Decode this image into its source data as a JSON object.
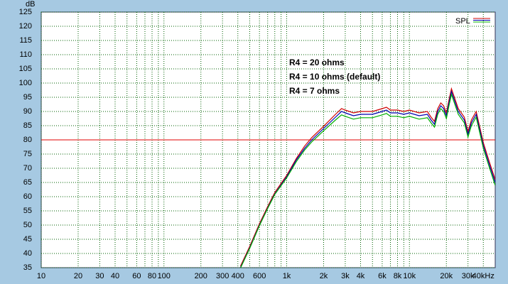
{
  "chart_data": {
    "type": "line",
    "y_label": "dB",
    "legend_label": "SPL",
    "legend_position": "top-right",
    "log_x": true,
    "grid": true,
    "xlim": [
      10,
      50000
    ],
    "ylim": [
      35,
      125
    ],
    "yticks": [
      35,
      40,
      45,
      50,
      55,
      60,
      65,
      70,
      75,
      80,
      85,
      90,
      95,
      100,
      105,
      110,
      115,
      120,
      125
    ],
    "xticks": [
      10,
      20,
      30,
      40,
      {
        "value": 50,
        "label": null
      },
      60,
      {
        "value": 70,
        "label": null
      },
      80,
      {
        "value": 90,
        "label": null
      },
      100,
      200,
      300,
      400,
      {
        "value": 500,
        "label": null
      },
      600,
      {
        "value": 700,
        "label": null
      },
      {
        "value": 800,
        "label": null
      },
      {
        "value": 900,
        "label": null
      },
      {
        "value": 1000,
        "label": "1k"
      },
      {
        "value": 2000,
        "label": "2k"
      },
      {
        "value": 3000,
        "label": "3k"
      },
      {
        "value": 4000,
        "label": "4k"
      },
      {
        "value": 5000,
        "label": null
      },
      {
        "value": 6000,
        "label": "6k"
      },
      {
        "value": 7000,
        "label": null
      },
      {
        "value": 8000,
        "label": "8k"
      },
      {
        "value": 9000,
        "label": null
      },
      {
        "value": 10000,
        "label": "10k"
      },
      {
        "value": 20000,
        "label": "20k"
      },
      {
        "value": 30000,
        "label": "30k"
      },
      {
        "value": 40000,
        "label": "40kHz"
      }
    ],
    "hline": {
      "value": 80,
      "color": "#e00000"
    },
    "x": [
      420,
      500,
      600,
      700,
      800,
      1000,
      1200,
      1400,
      1600,
      2000,
      2500,
      2800,
      3000,
      3500,
      4000,
      5000,
      6000,
      6500,
      7000,
      8000,
      9000,
      10000,
      12000,
      14000,
      15000,
      16000,
      17000,
      18000,
      19000,
      20000,
      21000,
      22000,
      25000,
      28000,
      30000,
      32000,
      35000,
      40000,
      45000,
      50000
    ],
    "series": [
      {
        "name": "R4 = 20 ohms",
        "color": "#d00000",
        "values": [
          35.5,
          42.5,
          50.5,
          56.5,
          61.5,
          67.5,
          73.5,
          77.8,
          80.8,
          84.8,
          89,
          91,
          90.5,
          89.5,
          90,
          90,
          91,
          91.5,
          90.5,
          90.5,
          90,
          90.5,
          89.5,
          90,
          88,
          86.5,
          91,
          93,
          92,
          89.5,
          94,
          98,
          91,
          88,
          83,
          87,
          90,
          79,
          72,
          66
        ]
      },
      {
        "name": "R4 = 10 ohms (default)",
        "color": "#0000b0",
        "values": [
          35,
          42,
          50,
          56,
          61,
          67,
          73,
          77,
          80,
          84,
          88,
          90,
          89.5,
          88.5,
          89,
          89,
          90,
          90.5,
          89.5,
          89.5,
          89,
          89.5,
          88.5,
          89,
          87,
          85.5,
          90,
          92,
          91,
          88.5,
          93,
          97,
          90,
          87,
          82,
          86,
          89,
          78,
          71,
          65
        ]
      },
      {
        "name": "R4 = 7 ohms",
        "color": "#00b000",
        "values": [
          34.8,
          41.8,
          49.8,
          55.8,
          60.8,
          66.6,
          72.4,
          76.4,
          79.3,
          83.2,
          87,
          88.8,
          88.3,
          87.3,
          87.8,
          87.8,
          88.8,
          89.3,
          88.3,
          88.3,
          87.8,
          88.3,
          87.3,
          87.8,
          86,
          84.5,
          89,
          91,
          90,
          87.5,
          92,
          96,
          89,
          86,
          81,
          85,
          88,
          77,
          70,
          64
        ]
      }
    ]
  }
}
